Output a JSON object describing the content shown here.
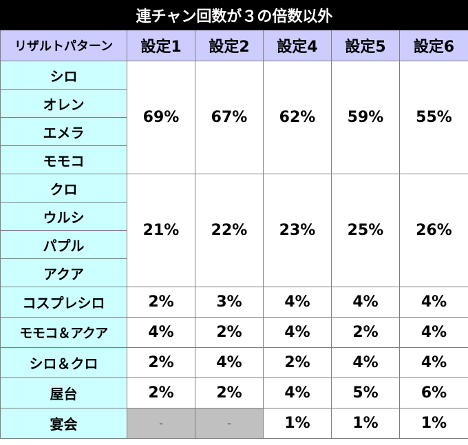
{
  "title": "連チャン回数が３の倍数以外",
  "header": {
    "pattern_label": "リザルトパターン",
    "settings": [
      "設定1",
      "設定2",
      "設定4",
      "設定5",
      "設定6"
    ]
  },
  "groups": [
    {
      "patterns": [
        "シロ",
        "オレン",
        "エメラ",
        "モモコ"
      ],
      "values": [
        "69%",
        "67%",
        "62%",
        "59%",
        "55%"
      ]
    },
    {
      "patterns": [
        "クロ",
        "ウルシ",
        "パプル",
        "アクア"
      ],
      "values": [
        "21%",
        "22%",
        "23%",
        "25%",
        "26%"
      ]
    }
  ],
  "rows": [
    {
      "label": "コスプレシロ",
      "values": [
        "2%",
        "3%",
        "4%",
        "4%",
        "4%"
      ]
    },
    {
      "label": "モモコ＆アクア",
      "values": [
        "4%",
        "2%",
        "4%",
        "2%",
        "4%"
      ]
    },
    {
      "label": "シロ＆クロ",
      "values": [
        "2%",
        "4%",
        "2%",
        "4%",
        "4%"
      ]
    },
    {
      "label": "屋台",
      "values": [
        "2%",
        "2%",
        "4%",
        "5%",
        "6%"
      ]
    },
    {
      "label": "宴会",
      "values": [
        "-",
        "-",
        "1%",
        "1%",
        "1%"
      ]
    }
  ],
  "colors": {
    "title_bg": "#000000",
    "header_bg": "#ccccff",
    "label_bg": "#ccffff",
    "na_bg": "#c0c0c0"
  }
}
